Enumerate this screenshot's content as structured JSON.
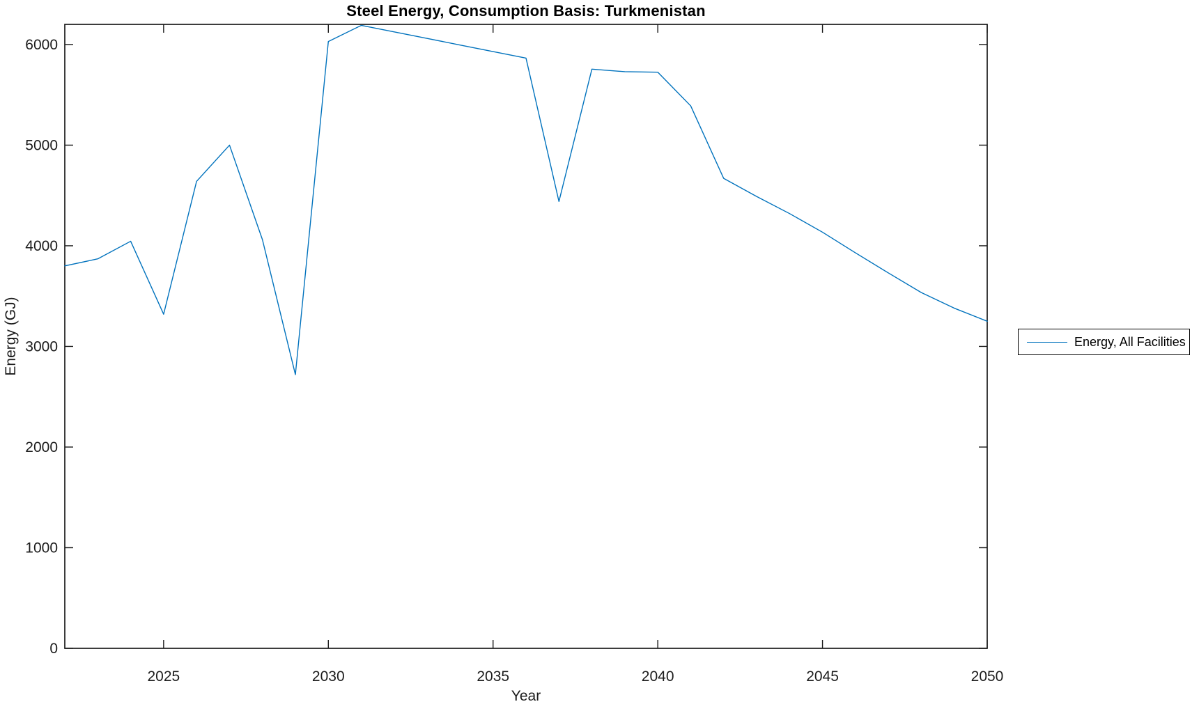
{
  "title": "Steel Energy, Consumption Basis: Turkmenistan",
  "xlabel": "Year",
  "ylabel": "Energy (GJ)",
  "legend": {
    "label": "Energy, All Facilities"
  },
  "colors": {
    "line": "#0072BD",
    "axis": "#1a1a1a",
    "tick_text": "#1c1c1c",
    "background": "#ffffff"
  },
  "chart_data": {
    "type": "line",
    "title": "Steel Energy, Consumption Basis: Turkmenistan",
    "xlabel": "Year",
    "ylabel": "Energy (GJ)",
    "x": [
      2022,
      2023,
      2024,
      2025,
      2026,
      2027,
      2028,
      2029,
      2030,
      2031,
      2032,
      2033,
      2034,
      2035,
      2036,
      2037,
      2038,
      2039,
      2040,
      2041,
      2042,
      2043,
      2044,
      2045,
      2046,
      2047,
      2048,
      2049,
      2050
    ],
    "series": [
      {
        "name": "Energy, All Facilities",
        "values": [
          3800,
          3870,
          4045,
          3320,
          4640,
          5000,
          4060,
          2720,
          6030,
          6190,
          6125,
          6060,
          5995,
          5930,
          5865,
          4440,
          5755,
          5730,
          5725,
          5390,
          4670,
          4490,
          4320,
          4135,
          3930,
          3730,
          3535,
          3380,
          3250
        ]
      }
    ],
    "xlim": [
      2022,
      2050
    ],
    "ylim": [
      0,
      6200
    ],
    "xticks": [
      2025,
      2030,
      2035,
      2040,
      2045,
      2050
    ],
    "yticks": [
      0,
      1000,
      2000,
      3000,
      4000,
      5000,
      6000
    ],
    "grid": false,
    "legend_position": "right-outside",
    "box": true,
    "tick_direction": "in"
  }
}
